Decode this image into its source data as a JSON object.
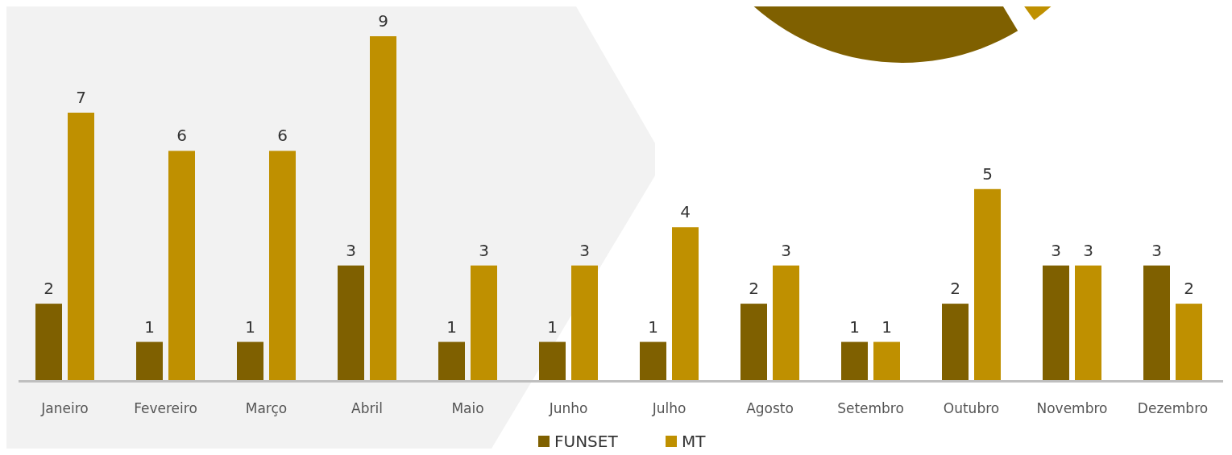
{
  "chart_data": {
    "type": "bar",
    "categories": [
      "Janeiro",
      "Fevereiro",
      "Março",
      "Abril",
      "Maio",
      "Junho",
      "Julho",
      "Agosto",
      "Setembro",
      "Outubro",
      "Novembro",
      "Dezembro"
    ],
    "series": [
      {
        "name": "FUNSET",
        "color": "#7f6000",
        "values": [
          2,
          1,
          1,
          3,
          1,
          1,
          1,
          2,
          1,
          2,
          3,
          3
        ]
      },
      {
        "name": "MT",
        "color": "#bf9000",
        "values": [
          7,
          6,
          6,
          9,
          3,
          3,
          4,
          3,
          1,
          5,
          3,
          2
        ]
      }
    ],
    "data_labels": true,
    "legend": "bottom",
    "grid": false
  }
}
